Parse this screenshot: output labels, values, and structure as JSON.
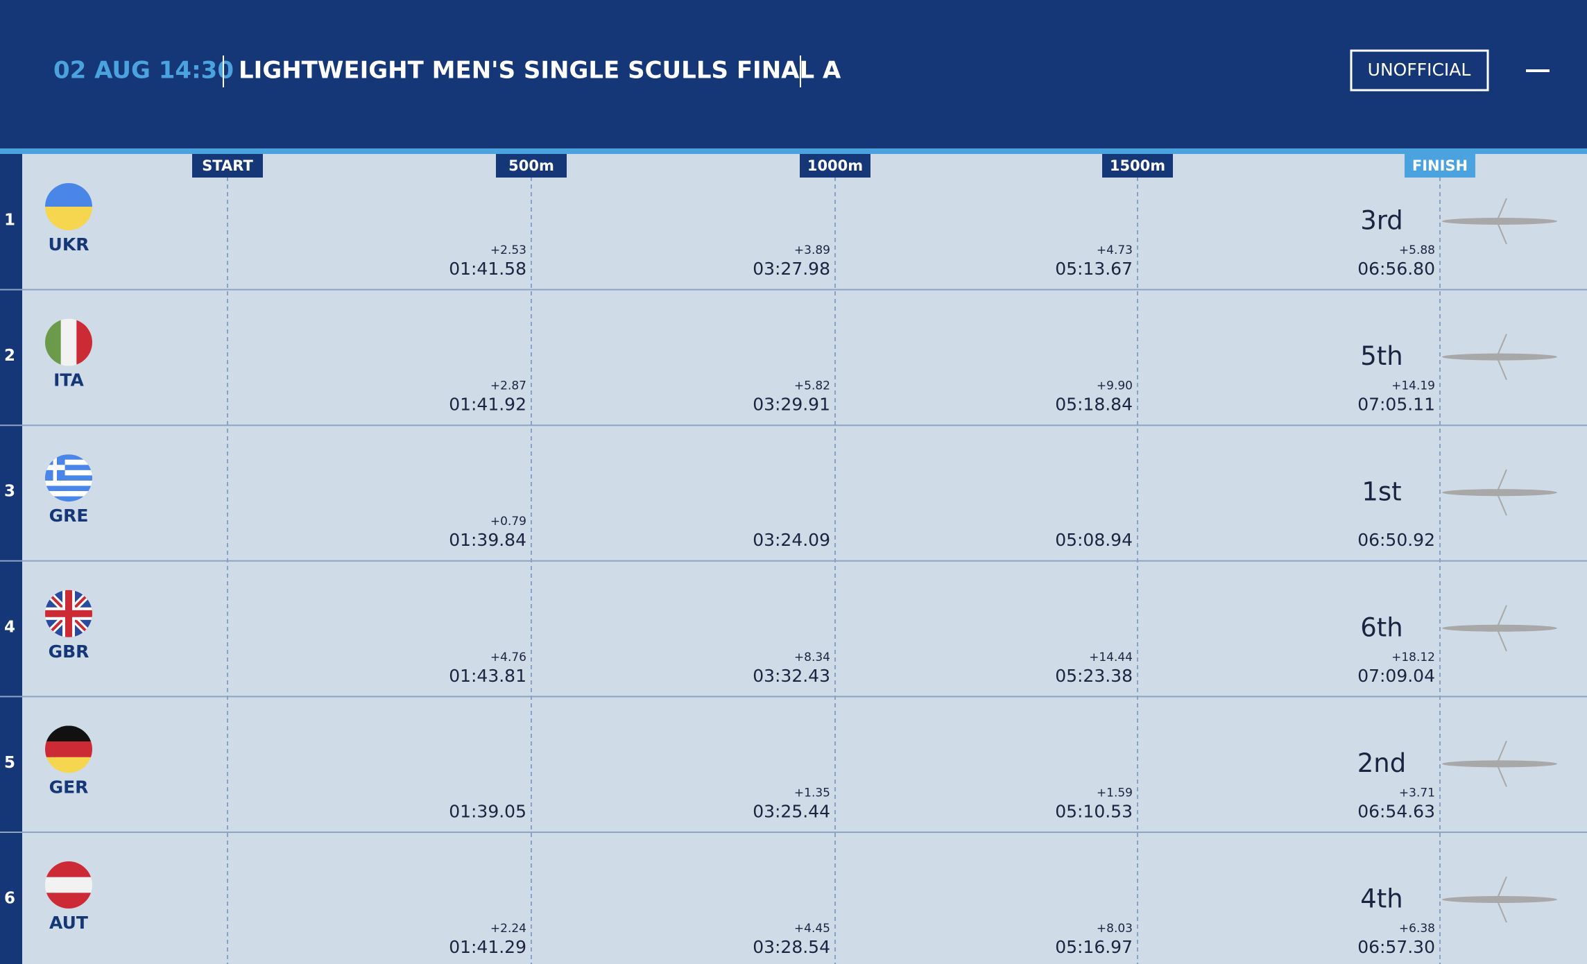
{
  "header": {
    "datetime": "02 AUG 14:30",
    "title": "LIGHTWEIGHT MEN'S SINGLE SCULLS FINAL A",
    "status": "UNOFFICIAL"
  },
  "markers": [
    "START",
    "500m",
    "1000m",
    "1500m",
    "FINISH"
  ],
  "lanes": [
    {
      "lane": "1",
      "country": "UKR",
      "place": "3rd",
      "splits": [
        {
          "delta": "+2.53",
          "time": "01:41.58"
        },
        {
          "delta": "+3.89",
          "time": "03:27.98"
        },
        {
          "delta": "+4.73",
          "time": "05:13.67"
        },
        {
          "delta": "+5.88",
          "time": "06:56.80"
        }
      ]
    },
    {
      "lane": "2",
      "country": "ITA",
      "place": "5th",
      "splits": [
        {
          "delta": "+2.87",
          "time": "01:41.92"
        },
        {
          "delta": "+5.82",
          "time": "03:29.91"
        },
        {
          "delta": "+9.90",
          "time": "05:18.84"
        },
        {
          "delta": "+14.19",
          "time": "07:05.11"
        }
      ]
    },
    {
      "lane": "3",
      "country": "GRE",
      "place": "1st",
      "splits": [
        {
          "delta": "+0.79",
          "time": "01:39.84"
        },
        {
          "time": "03:24.09"
        },
        {
          "time": "05:08.94"
        },
        {
          "time": "06:50.92"
        }
      ]
    },
    {
      "lane": "4",
      "country": "GBR",
      "place": "6th",
      "splits": [
        {
          "delta": "+4.76",
          "time": "01:43.81"
        },
        {
          "delta": "+8.34",
          "time": "03:32.43"
        },
        {
          "delta": "+14.44",
          "time": "05:23.38"
        },
        {
          "delta": "+18.12",
          "time": "07:09.04"
        }
      ]
    },
    {
      "lane": "5",
      "country": "GER",
      "place": "2nd",
      "splits": [
        {
          "time": "01:39.05"
        },
        {
          "delta": "+1.35",
          "time": "03:25.44"
        },
        {
          "delta": "+1.59",
          "time": "05:10.53"
        },
        {
          "delta": "+3.71",
          "time": "06:54.63"
        }
      ]
    },
    {
      "lane": "6",
      "country": "AUT",
      "place": "4th",
      "splits": [
        {
          "delta": "+2.24",
          "time": "01:41.29"
        },
        {
          "delta": "+4.45",
          "time": "03:28.54"
        },
        {
          "delta": "+8.03",
          "time": "05:16.97"
        },
        {
          "delta": "+6.38",
          "time": "06:57.30"
        }
      ]
    }
  ]
}
